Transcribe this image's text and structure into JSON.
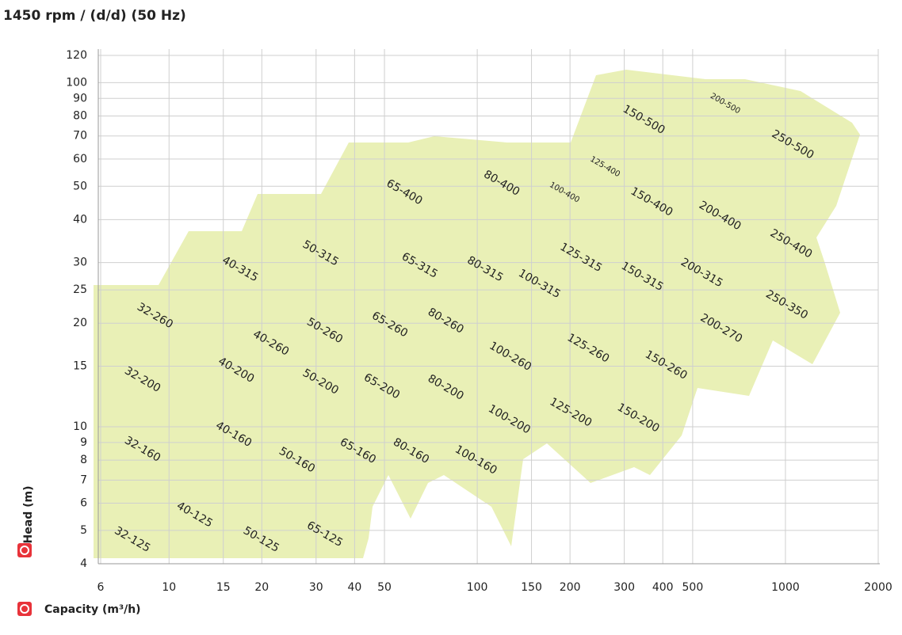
{
  "chart_data": {
    "type": "region-map",
    "title": "1450  rpm / (d/d) (50 Hz)",
    "x_label": "Capacity (m³/h)",
    "y_label": "Head (m)",
    "x_log": true,
    "y_log": true,
    "grid": true,
    "xlim": [
      6,
      2000
    ],
    "ylim": [
      4,
      120
    ],
    "xticks": [
      6,
      10,
      15,
      20,
      30,
      40,
      50,
      100,
      150,
      200,
      300,
      400,
      500,
      1000,
      2000
    ],
    "yticks": [
      4,
      5,
      6,
      7,
      8,
      9,
      10,
      15,
      20,
      25,
      30,
      40,
      50,
      60,
      70,
      80,
      90,
      100,
      120
    ],
    "color": "#e9f0b6",
    "regions": [
      {
        "name": "32-125",
        "x": 7.6,
        "y": 4.7
      },
      {
        "name": "40-125",
        "x": 12.1,
        "y": 5.55
      },
      {
        "name": "50-125",
        "x": 19.9,
        "y": 4.7
      },
      {
        "name": "65-125",
        "x": 32,
        "y": 4.87
      },
      {
        "name": "32-160",
        "x": 8.2,
        "y": 8.6
      },
      {
        "name": "40-160",
        "x": 16.2,
        "y": 9.5
      },
      {
        "name": "50-160",
        "x": 26,
        "y": 8.0
      },
      {
        "name": "65-160",
        "x": 41,
        "y": 8.5
      },
      {
        "name": "80-160",
        "x": 61,
        "y": 8.5
      },
      {
        "name": "100-160",
        "x": 99,
        "y": 8.0
      },
      {
        "name": "32-200",
        "x": 8.2,
        "y": 13.7
      },
      {
        "name": "40-200",
        "x": 16.5,
        "y": 14.6
      },
      {
        "name": "50-200",
        "x": 31,
        "y": 13.5
      },
      {
        "name": "65-200",
        "x": 49,
        "y": 13.1
      },
      {
        "name": "80-200",
        "x": 79,
        "y": 13
      },
      {
        "name": "100-200",
        "x": 127,
        "y": 10.5
      },
      {
        "name": "125-200",
        "x": 201,
        "y": 11
      },
      {
        "name": "150-200",
        "x": 333,
        "y": 10.6
      },
      {
        "name": "32-260",
        "x": 9,
        "y": 21
      },
      {
        "name": "40-260",
        "x": 21.4,
        "y": 17.5
      },
      {
        "name": "50-260",
        "x": 32,
        "y": 19
      },
      {
        "name": "65-260",
        "x": 52,
        "y": 19.8
      },
      {
        "name": "80-260",
        "x": 79,
        "y": 20.3
      },
      {
        "name": "100-260",
        "x": 128,
        "y": 16
      },
      {
        "name": "125-260",
        "x": 229,
        "y": 16.9
      },
      {
        "name": "150-260",
        "x": 410,
        "y": 15.1
      },
      {
        "name": "200-270",
        "x": 619,
        "y": 19.3
      },
      {
        "name": "250-350",
        "x": 1010,
        "y": 22.6
      },
      {
        "name": "40-315",
        "x": 17,
        "y": 28.7
      },
      {
        "name": "50-315",
        "x": 31,
        "y": 31.9
      },
      {
        "name": "65-315",
        "x": 65,
        "y": 29.4
      },
      {
        "name": "80-315",
        "x": 106,
        "y": 28.7
      },
      {
        "name": "100-315",
        "x": 159,
        "y": 26
      },
      {
        "name": "125-315",
        "x": 217,
        "y": 31
      },
      {
        "name": "150-315",
        "x": 343,
        "y": 27.3
      },
      {
        "name": "200-315",
        "x": 535,
        "y": 28
      },
      {
        "name": "250-400",
        "x": 1043,
        "y": 34
      },
      {
        "name": "65-400",
        "x": 58,
        "y": 48
      },
      {
        "name": "80-400",
        "x": 120,
        "y": 51
      },
      {
        "name": "100-400",
        "x": 192,
        "y": 48,
        "small": true
      },
      {
        "name": "125-400",
        "x": 260,
        "y": 57,
        "small": true
      },
      {
        "name": "150-400",
        "x": 368,
        "y": 45
      },
      {
        "name": "200-400",
        "x": 613,
        "y": 41
      },
      {
        "name": "150-500",
        "x": 347,
        "y": 78
      },
      {
        "name": "200-500",
        "x": 638,
        "y": 87,
        "small": true
      },
      {
        "name": "250-500",
        "x": 1056,
        "y": 66
      }
    ]
  }
}
